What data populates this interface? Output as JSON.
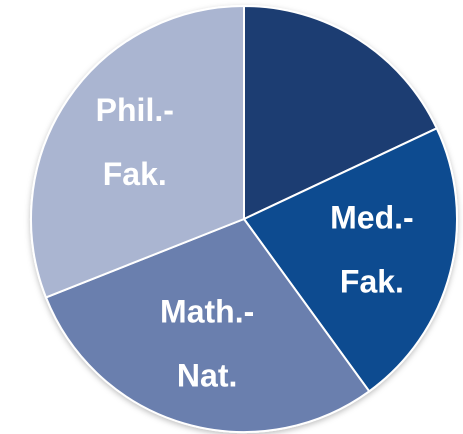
{
  "chart_data": {
    "type": "pie",
    "categories": [
      null,
      [
        "Med.-",
        "Fak."
      ],
      [
        "Math.-",
        "Nat."
      ],
      [
        "Phil.-",
        "Fak."
      ]
    ],
    "values": [
      18,
      22,
      29,
      31
    ],
    "colors": [
      "#1d3e72",
      "#0f4c90",
      "#6a7fae",
      "#aab5d1"
    ]
  }
}
